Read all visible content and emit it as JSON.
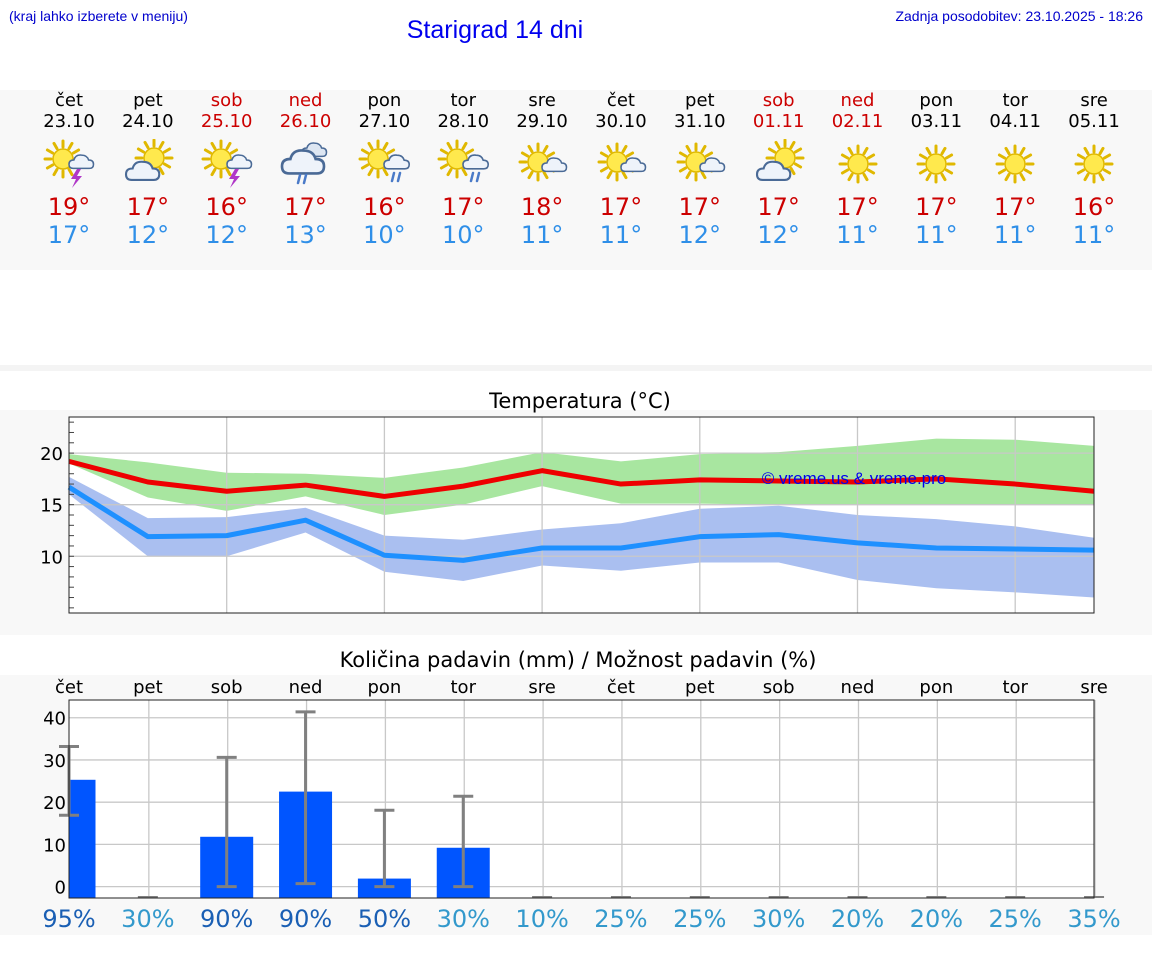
{
  "header": {
    "hint": "(kraj lahko izberete v meniju)",
    "title": "Starigrad 14 dni",
    "updated": "Zadnja posodobitev: 23.10.2025 - 18:26"
  },
  "colors": {
    "max": "#ee0000",
    "min": "#1e90ff",
    "max_band": "#a8e6a0",
    "min_band": "#aabff0",
    "overlap_band": "#7fc4a6",
    "bar": "#0055ff",
    "error_bar": "#808080",
    "weekend": "#cc0000",
    "pct_high": "#1a5fb4",
    "pct_low": "#3399cc"
  },
  "days": [
    {
      "name": "čet",
      "date": "23.10",
      "weekend": false,
      "icon": "sun-cloud-thunder-icon",
      "tmax": "19°",
      "tmin": "17°"
    },
    {
      "name": "pet",
      "date": "24.10",
      "weekend": false,
      "icon": "cloud-sun-icon",
      "tmax": "17°",
      "tmin": "12°"
    },
    {
      "name": "sob",
      "date": "25.10",
      "weekend": true,
      "icon": "sun-cloud-thunder-icon",
      "tmax": "16°",
      "tmin": "12°"
    },
    {
      "name": "ned",
      "date": "26.10",
      "weekend": true,
      "icon": "cloud-rain-icon",
      "tmax": "17°",
      "tmin": "13°"
    },
    {
      "name": "pon",
      "date": "27.10",
      "weekend": false,
      "icon": "sun-cloud-rain-icon",
      "tmax": "16°",
      "tmin": "10°"
    },
    {
      "name": "tor",
      "date": "28.10",
      "weekend": false,
      "icon": "sun-cloud-rain-icon",
      "tmax": "17°",
      "tmin": "10°"
    },
    {
      "name": "sre",
      "date": "29.10",
      "weekend": false,
      "icon": "sun-small-cloud-icon",
      "tmax": "18°",
      "tmin": "11°"
    },
    {
      "name": "čet",
      "date": "30.10",
      "weekend": false,
      "icon": "sun-small-cloud-icon",
      "tmax": "17°",
      "tmin": "11°"
    },
    {
      "name": "pet",
      "date": "31.10",
      "weekend": false,
      "icon": "sun-small-cloud-icon",
      "tmax": "17°",
      "tmin": "12°"
    },
    {
      "name": "sob",
      "date": "01.11",
      "weekend": true,
      "icon": "cloud-sun-icon",
      "tmax": "17°",
      "tmin": "12°"
    },
    {
      "name": "ned",
      "date": "02.11",
      "weekend": true,
      "icon": "sun-icon",
      "tmax": "17°",
      "tmin": "11°"
    },
    {
      "name": "pon",
      "date": "03.11",
      "weekend": false,
      "icon": "sun-icon",
      "tmax": "17°",
      "tmin": "11°"
    },
    {
      "name": "tor",
      "date": "04.11",
      "weekend": false,
      "icon": "sun-icon",
      "tmax": "17°",
      "tmin": "11°"
    },
    {
      "name": "sre",
      "date": "05.11",
      "weekend": false,
      "icon": "sun-icon",
      "tmax": "16°",
      "tmin": "11°"
    }
  ],
  "chart_data": [
    {
      "type": "line",
      "title": "Temperatura (°C)",
      "watermark": "© vreme.us & vreme.pro",
      "x": [
        "23.10",
        "24.10",
        "25.10",
        "26.10",
        "27.10",
        "28.10",
        "29.10",
        "30.10",
        "31.10",
        "01.11",
        "02.11",
        "03.11",
        "04.11",
        "05.11"
      ],
      "ylim": [
        4.5,
        23.5
      ],
      "yticks": [
        10,
        15,
        20
      ],
      "grid": true,
      "series": [
        {
          "role": "max",
          "values": [
            19.2,
            17.2,
            16.3,
            16.9,
            15.8,
            16.8,
            18.3,
            17.0,
            17.4,
            17.3,
            17.2,
            17.5,
            17.0,
            16.3
          ]
        },
        {
          "role": "min",
          "values": [
            16.7,
            11.9,
            12.0,
            13.5,
            10.1,
            9.6,
            10.8,
            10.8,
            11.9,
            12.1,
            11.3,
            10.8,
            10.7,
            10.6
          ]
        }
      ],
      "bands": [
        {
          "role": "max_range",
          "low": [
            19.0,
            15.7,
            14.4,
            15.8,
            14.0,
            15.0,
            16.8,
            15.1,
            15.1,
            15.0,
            15.0,
            15.0,
            15.0,
            15.0
          ],
          "high": [
            19.9,
            19.1,
            18.1,
            18.0,
            17.6,
            18.6,
            20.1,
            19.2,
            19.9,
            20.1,
            20.7,
            21.4,
            21.3,
            20.7
          ]
        },
        {
          "role": "min_range",
          "low": [
            16.0,
            10.0,
            10.0,
            12.3,
            8.5,
            7.6,
            9.1,
            8.6,
            9.4,
            9.4,
            7.7,
            6.9,
            6.5,
            6.0
          ],
          "high": [
            17.7,
            13.7,
            13.8,
            14.7,
            12.0,
            11.6,
            12.6,
            13.2,
            14.6,
            14.9,
            14.0,
            13.6,
            12.9,
            11.8
          ]
        }
      ]
    },
    {
      "type": "bar",
      "title": "Količina padavin (mm) / Možnost padavin (%)",
      "categories": [
        "čet",
        "pet",
        "sob",
        "ned",
        "pon",
        "tor",
        "sre",
        "čet",
        "pet",
        "sob",
        "ned",
        "pon",
        "tor",
        "sre"
      ],
      "values": [
        25.3,
        0,
        11.8,
        22.5,
        1.9,
        9.2,
        0,
        0,
        0,
        0,
        0,
        0,
        0,
        0
      ],
      "error_low": [
        16.9,
        0,
        0,
        0.7,
        0,
        0,
        0,
        0,
        0,
        0,
        0,
        0,
        0,
        0
      ],
      "error_high": [
        33.2,
        0,
        30.6,
        41.4,
        18.1,
        21.4,
        0,
        0,
        0,
        0,
        0,
        0,
        0,
        0
      ],
      "ylim": [
        -2.7,
        44.2
      ],
      "yticks": [
        0,
        10,
        20,
        30,
        40
      ],
      "grid": true,
      "probabilities": [
        "95%",
        "30%",
        "90%",
        "90%",
        "50%",
        "30%",
        "10%",
        "25%",
        "25%",
        "30%",
        "20%",
        "20%",
        "25%",
        "35%"
      ],
      "probability_values": [
        95,
        30,
        90,
        90,
        50,
        30,
        10,
        25,
        25,
        30,
        20,
        20,
        25,
        35
      ]
    }
  ]
}
